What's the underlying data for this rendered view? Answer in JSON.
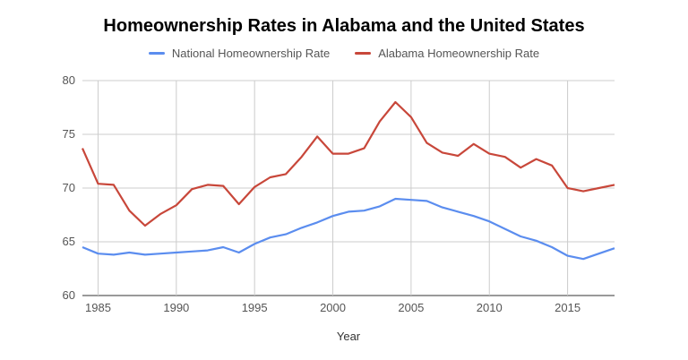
{
  "chart_data": {
    "type": "line",
    "title": "Homeownership Rates in Alabama and the United States",
    "xlabel": "Year",
    "ylabel": "",
    "xlim": [
      1984,
      2018
    ],
    "ylim": [
      60,
      80
    ],
    "yticks": [
      60,
      65,
      70,
      75,
      80
    ],
    "xticks": [
      1985,
      1990,
      1995,
      2000,
      2005,
      2010,
      2015
    ],
    "grid": true,
    "legend_position": "top",
    "x": [
      1984,
      1985,
      1986,
      1987,
      1988,
      1989,
      1990,
      1991,
      1992,
      1993,
      1994,
      1995,
      1996,
      1997,
      1998,
      1999,
      2000,
      2001,
      2002,
      2003,
      2004,
      2005,
      2006,
      2007,
      2008,
      2009,
      2010,
      2011,
      2012,
      2013,
      2014,
      2015,
      2016,
      2017,
      2018
    ],
    "series": [
      {
        "name": "National Homeownership Rate",
        "color": "#5b8def",
        "values": [
          64.5,
          63.9,
          63.8,
          64.0,
          63.8,
          63.9,
          64.0,
          64.1,
          64.2,
          64.5,
          64.0,
          64.8,
          65.4,
          65.7,
          66.3,
          66.8,
          67.4,
          67.8,
          67.9,
          68.3,
          69.0,
          68.9,
          68.8,
          68.2,
          67.8,
          67.4,
          66.9,
          66.2,
          65.5,
          65.1,
          64.5,
          63.7,
          63.4,
          63.9,
          64.4
        ]
      },
      {
        "name": "Alabama Homeownership Rate",
        "color": "#c8473a",
        "values": [
          73.7,
          70.4,
          70.3,
          67.9,
          66.5,
          67.6,
          68.4,
          69.9,
          70.3,
          70.2,
          68.5,
          70.1,
          71.0,
          71.3,
          72.9,
          74.8,
          73.2,
          73.2,
          73.7,
          76.2,
          78.0,
          76.6,
          74.2,
          73.3,
          73.0,
          74.1,
          73.2,
          72.9,
          71.9,
          72.7,
          72.1,
          70.0,
          69.7,
          70.0,
          70.3
        ]
      }
    ]
  }
}
